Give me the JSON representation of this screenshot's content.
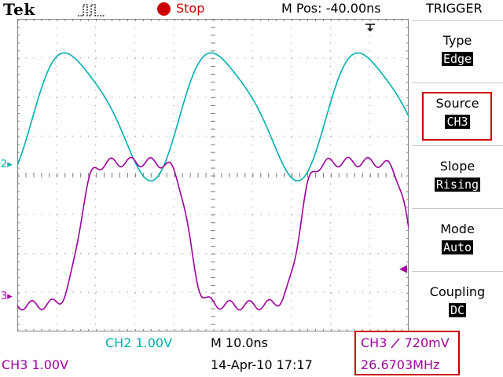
{
  "header": {
    "brand": "Tek",
    "acquisition_icon": "pulse-waveform-icon",
    "status": {
      "label": "Stop",
      "color": "#cc0000"
    },
    "mpos": "M Pos: -40.00ns",
    "trigger_position_icon": "trigger-position-arrow-icon"
  },
  "side_menu": {
    "title": "TRIGGER",
    "items": [
      {
        "label": "Type",
        "value": "Edge"
      },
      {
        "label": "Source",
        "value": "CH3"
      },
      {
        "label": "Slope",
        "value": "Rising"
      },
      {
        "label": "Mode",
        "value": "Auto"
      },
      {
        "label": "Coupling",
        "value": "DC"
      }
    ],
    "highlighted_index": 1
  },
  "channels": {
    "ch2": {
      "marker": "2",
      "scale": "CH2  1.00V",
      "color": "#00b0b0"
    },
    "ch3": {
      "marker": "3",
      "scale": "CH3  1.00V",
      "color": "#a000a0"
    }
  },
  "footer": {
    "timebase": "M 10.0ns",
    "datetime": "14-Apr-10 17:17",
    "trigger": {
      "source": "CH3",
      "slope_icon": "rising-edge-icon",
      "level": "720mV"
    },
    "frequency": "26.6703MHz"
  },
  "trace_colors": {
    "ch2": "#00b0b0",
    "ch3": "#a000a0",
    "grid": "#808080",
    "alert": "#cc0000"
  }
}
